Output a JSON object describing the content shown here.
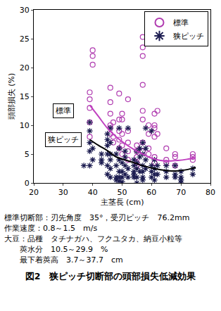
{
  "chart_data": {
    "type": "scatter",
    "x_label": "主茎長 (cm)",
    "y_label": "頭部損失 (%)",
    "xlim": [
      20,
      80
    ],
    "xticks": [
      20,
      30,
      40,
      50,
      60,
      70,
      80
    ],
    "ylim": [
      0,
      30
    ],
    "yticks": [
      0,
      5,
      10,
      15,
      20,
      25,
      30
    ],
    "grid": false,
    "legend": "upper right",
    "series": [
      {
        "name": "標準",
        "type": "scatter",
        "marker": "circle-open",
        "color": "#b03cb0",
        "x": [
          39,
          39,
          39,
          39,
          39,
          40,
          40,
          40,
          46,
          46,
          46,
          46,
          46,
          46,
          47,
          47,
          47,
          49,
          49,
          49,
          49,
          49,
          50,
          50,
          50,
          50,
          50,
          52,
          52,
          52,
          52,
          52,
          55,
          55,
          55,
          55,
          55,
          57,
          57,
          57,
          57,
          57,
          57,
          57,
          57,
          59,
          59,
          59,
          59,
          61,
          61,
          61,
          61,
          61,
          61,
          62,
          62,
          65,
          65,
          65,
          68,
          68,
          68,
          74,
          74,
          74
        ],
        "values": [
          15.7,
          14.5,
          13,
          10.5,
          8,
          23,
          22,
          20.5,
          16.5,
          14,
          12,
          10,
          9.5,
          8.5,
          10.5,
          8,
          7,
          15.5,
          11,
          9,
          7.5,
          6,
          12,
          11,
          8.5,
          6.5,
          5,
          14.5,
          9,
          7,
          5.5,
          4,
          6.5,
          5.5,
          4.5,
          3.5,
          3,
          25.3,
          23.5,
          22,
          17,
          12.5,
          11,
          7,
          5.5,
          10,
          8.5,
          6,
          5,
          12,
          10,
          9.5,
          8,
          4.5,
          3.5,
          12.5,
          8.5,
          6,
          4,
          3.5,
          5,
          4.5,
          3,
          5,
          4.5,
          4
        ]
      },
      {
        "name": "狭ピッチ",
        "type": "scatter",
        "marker": "asterisk-open",
        "color": "#1c1c50",
        "x": [
          37,
          39,
          39,
          39,
          39,
          39,
          40,
          40,
          43,
          43,
          43,
          45,
          45,
          45,
          45,
          45,
          45,
          46,
          46,
          46,
          46,
          46,
          46,
          48,
          48,
          48,
          48,
          49,
          49,
          49,
          49,
          49,
          49,
          50,
          50,
          50,
          50,
          51,
          51,
          51,
          51,
          52,
          52,
          52,
          54,
          54,
          54,
          54,
          54,
          55,
          55,
          55,
          55,
          55,
          56,
          56,
          56,
          57,
          57,
          57,
          57,
          57,
          57,
          58,
          58,
          58,
          58,
          60,
          60,
          60,
          60,
          61,
          61,
          61,
          61,
          62,
          62,
          65,
          65,
          65,
          68,
          68,
          68,
          70,
          70,
          70,
          70,
          74,
          74
        ],
        "values": [
          3,
          10.5,
          9,
          7,
          5.5,
          3,
          6,
          4,
          5,
          4,
          3.5,
          8.5,
          7.5,
          6.5,
          5,
          3,
          1.5,
          9.5,
          7,
          5,
          4,
          2.5,
          1,
          5,
          3,
          1,
          0.5,
          9.5,
          6,
          4,
          2,
          1,
          0.3,
          3.5,
          2,
          1,
          0.2,
          5.5,
          4.5,
          3,
          1.5,
          9.5,
          2.5,
          1,
          4,
          3,
          2,
          1.5,
          1,
          5.5,
          3.5,
          2.5,
          1,
          0,
          6,
          4.5,
          2,
          7,
          5,
          3,
          2,
          1,
          0.5,
          9.5,
          6,
          4,
          2.5,
          9,
          3,
          2,
          1,
          4,
          2.5,
          1.5,
          0.5,
          3,
          1.5,
          3,
          2,
          1,
          3,
          1.5,
          1,
          2,
          1,
          0.5,
          0,
          2.5,
          1.5
        ]
      },
      {
        "type": "line",
        "line_style": "solid",
        "color": "#c040c0",
        "x": [
          39,
          42,
          45,
          48,
          51,
          54,
          57,
          60,
          63,
          66,
          69,
          72,
          75
        ],
        "values": [
          13.5,
          11.5,
          9.5,
          8,
          6.8,
          5.8,
          5,
          4.3,
          3.9,
          3.8,
          3.9,
          4.1,
          4.4
        ]
      },
      {
        "type": "line",
        "line_style": "solid",
        "color": "#000000",
        "x": [
          39,
          42,
          45,
          48,
          51,
          54,
          57,
          60,
          63,
          66,
          69,
          72,
          75
        ],
        "values": [
          7.5,
          6.5,
          5.6,
          4.5,
          4,
          3.5,
          3,
          2.6,
          2.3,
          2.1,
          2.1,
          2.3,
          2.7
        ]
      }
    ],
    "annotations": [
      {
        "text": "標準",
        "x": 30,
        "y": 12.5
      },
      {
        "text": "狭ピッチ",
        "x": 30,
        "y": 7.5
      }
    ],
    "notes": [
      "標準切断部：刃先角度　35°，受刃ピッチ　76.2mm",
      "作業速度：0.8～1.5　m/s",
      "大豆：品種　タチナガハ、フクユタカ、納豆小粒等",
      "　　莢水分　10.5～29.9　%",
      "　　最下着莢高　3.7～37.7　cm"
    ],
    "caption": "図2　狭ピッチ切断部の頭部損失低減効果"
  }
}
